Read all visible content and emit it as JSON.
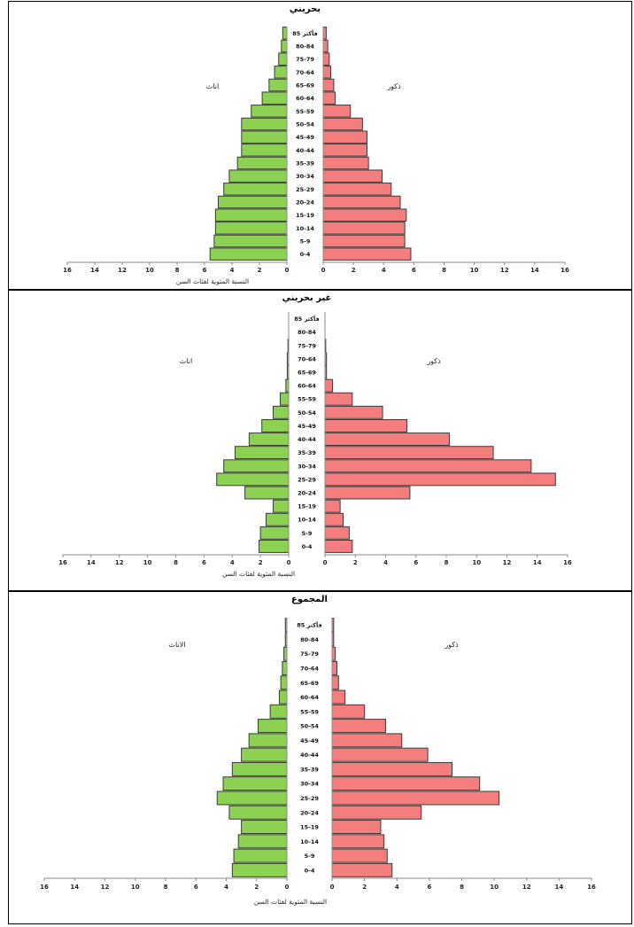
{
  "chart_data": [
    {
      "type": "bar",
      "subtype": "population-pyramid",
      "title": "بحريني",
      "female_label": "اناث",
      "male_label": "ذكور",
      "xlabel": "النسبة المئوية لفئات السن",
      "categories": [
        "0-4",
        "5-9",
        "10-14",
        "15-19",
        "20-24",
        "25-29",
        "30-34",
        "35-39",
        "40-44",
        "45-49",
        "50-54",
        "55-59",
        "60-64",
        "65-69",
        "70-64",
        "75-79",
        "80-84",
        "85 فأكثر"
      ],
      "series": [
        {
          "name": "اناث",
          "values": [
            5.6,
            5.3,
            5.2,
            5.2,
            5.0,
            4.6,
            4.2,
            3.6,
            3.3,
            3.3,
            3.3,
            2.6,
            1.8,
            1.3,
            0.9,
            0.6,
            0.4,
            0.3
          ]
        },
        {
          "name": "ذكور",
          "values": [
            5.8,
            5.4,
            5.4,
            5.5,
            5.1,
            4.5,
            3.9,
            3.0,
            2.9,
            2.9,
            2.6,
            1.8,
            0.8,
            0.7,
            0.5,
            0.4,
            0.3,
            0.2
          ]
        }
      ],
      "xlim": [
        0,
        16
      ],
      "xticks": [
        "16",
        "14",
        "12",
        "10",
        "8",
        "6",
        "4",
        "2",
        "0"
      ],
      "colors": {
        "female": "#8cd152",
        "male": "#f47e7e"
      }
    },
    {
      "type": "bar",
      "subtype": "population-pyramid",
      "title": "غير بحريني",
      "female_label": "اناث",
      "male_label": "ذكور",
      "xlabel": "النسبة المئوية لفئات السن",
      "categories": [
        "0-4",
        "5-9",
        "10-14",
        "15-19",
        "20-24",
        "25-29",
        "30-34",
        "35-39",
        "40-44",
        "45-49",
        "50-54",
        "55-59",
        "60-64",
        "65-69",
        "70-64",
        "75-79",
        "80-84",
        "85 فأكثر"
      ],
      "series": [
        {
          "name": "اناث",
          "values": [
            2.1,
            2.0,
            1.6,
            1.1,
            3.1,
            5.1,
            4.6,
            3.8,
            2.8,
            1.9,
            1.1,
            0.6,
            0.2,
            0.1,
            0.1,
            0.05,
            0.0,
            0.0
          ]
        },
        {
          "name": "ذكور",
          "values": [
            1.8,
            1.6,
            1.2,
            1.0,
            5.6,
            15.2,
            13.6,
            11.1,
            8.2,
            5.4,
            3.8,
            1.8,
            0.5,
            0.1,
            0.1,
            0.05,
            0.0,
            0.0
          ]
        }
      ],
      "xlim": [
        0,
        16
      ],
      "xticks": [
        "16",
        "14",
        "12",
        "10",
        "8",
        "6",
        "4",
        "2",
        "0"
      ],
      "colors": {
        "female": "#8cd152",
        "male": "#f47e7e"
      }
    },
    {
      "type": "bar",
      "subtype": "population-pyramid",
      "title": "المجموع",
      "female_label": "الاناث",
      "male_label": "ذكور",
      "xlabel": "النسبة المئوية لفئات السن",
      "categories": [
        "0-4",
        "5-9",
        "10-14",
        "15-19",
        "20-24",
        "25-29",
        "30-34",
        "35-39",
        "40-44",
        "45-49",
        "50-54",
        "55-59",
        "60-64",
        "65-69",
        "70-64",
        "75-79",
        "80-84",
        "85 فأكثر"
      ],
      "series": [
        {
          "name": "الاناث",
          "values": [
            3.6,
            3.5,
            3.2,
            3.0,
            3.8,
            4.6,
            4.2,
            3.6,
            3.0,
            2.5,
            1.9,
            1.1,
            0.5,
            0.4,
            0.3,
            0.2,
            0.1,
            0.1
          ]
        },
        {
          "name": "ذكور",
          "values": [
            3.7,
            3.4,
            3.2,
            3.0,
            5.5,
            10.3,
            9.1,
            7.4,
            5.9,
            4.3,
            3.3,
            2.0,
            0.8,
            0.4,
            0.3,
            0.2,
            0.1,
            0.1
          ]
        }
      ],
      "xlim": [
        0,
        16
      ],
      "xticks": [
        "16",
        "14",
        "12",
        "10",
        "8",
        "6",
        "4",
        "2",
        "0"
      ],
      "colors": {
        "female": "#8cd152",
        "male": "#f47e7e"
      }
    }
  ]
}
